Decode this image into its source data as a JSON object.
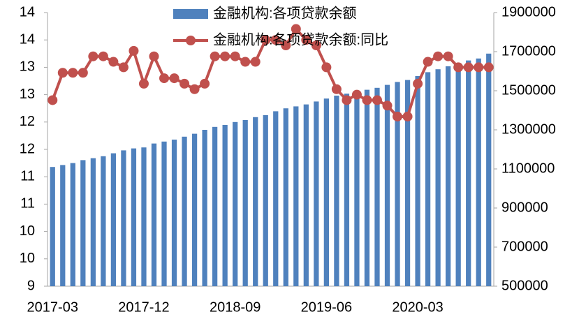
{
  "chart_data": {
    "type": "bar_line",
    "categories": [
      "2017-03",
      null,
      null,
      null,
      null,
      null,
      null,
      null,
      null,
      "2017-12",
      null,
      null,
      null,
      null,
      null,
      null,
      null,
      null,
      "2018-09",
      null,
      null,
      null,
      null,
      null,
      null,
      null,
      null,
      "2019-06",
      null,
      null,
      null,
      null,
      null,
      null,
      null,
      null,
      "2020-03",
      null,
      null,
      null,
      null,
      null,
      null,
      null
    ],
    "series": [
      {
        "name": "金融机构:各项贷款余额",
        "type": "bar",
        "axis": "y2",
        "color": "#4f81bd",
        "values": [
          1110000,
          1120000,
          1130000,
          1145000,
          1155000,
          1165000,
          1180000,
          1195000,
          1205000,
          1210000,
          1230000,
          1240000,
          1250000,
          1265000,
          1280000,
          1300000,
          1315000,
          1325000,
          1340000,
          1350000,
          1365000,
          1375000,
          1395000,
          1410000,
          1420000,
          1430000,
          1445000,
          1460000,
          1475000,
          1485000,
          1495000,
          1505000,
          1515000,
          1530000,
          1545000,
          1555000,
          1575000,
          1595000,
          1610000,
          1625000,
          1640000,
          1655000,
          1665000,
          1690000
        ]
      },
      {
        "name": "金融机构:各项贷款余额:同比",
        "type": "line",
        "axis": "y",
        "color": "#c0504d",
        "values": [
          12.4,
          12.9,
          12.9,
          12.9,
          13.2,
          13.2,
          13.1,
          13.0,
          13.3,
          12.7,
          13.2,
          12.8,
          12.8,
          12.7,
          12.6,
          12.7,
          13.2,
          13.2,
          13.2,
          13.1,
          13.1,
          13.5,
          13.5,
          13.4,
          13.7,
          13.5,
          13.4,
          13.0,
          12.6,
          12.4,
          12.5,
          12.4,
          12.4,
          12.3,
          12.1,
          12.1,
          12.7,
          13.1,
          13.2,
          13.2,
          13.0,
          13.0,
          13.0,
          13.0
        ]
      }
    ],
    "ylim": [
      9,
      14
    ],
    "yticks": [
      9,
      {
        "value": 9.5,
        "label": "10"
      },
      10,
      {
        "value": 10.5,
        "label": "11"
      },
      11,
      {
        "value": 11.5,
        "label": "12"
      },
      12,
      {
        "value": 12.5,
        "label": "13"
      },
      13,
      {
        "value": 13.5,
        "label": "14"
      },
      14
    ],
    "y2lim": [
      500000,
      1900000
    ],
    "y2ticks": [
      500000,
      700000,
      900000,
      1100000,
      1300000,
      1500000,
      1700000,
      1900000
    ],
    "legend": "top-center",
    "grid": false
  }
}
